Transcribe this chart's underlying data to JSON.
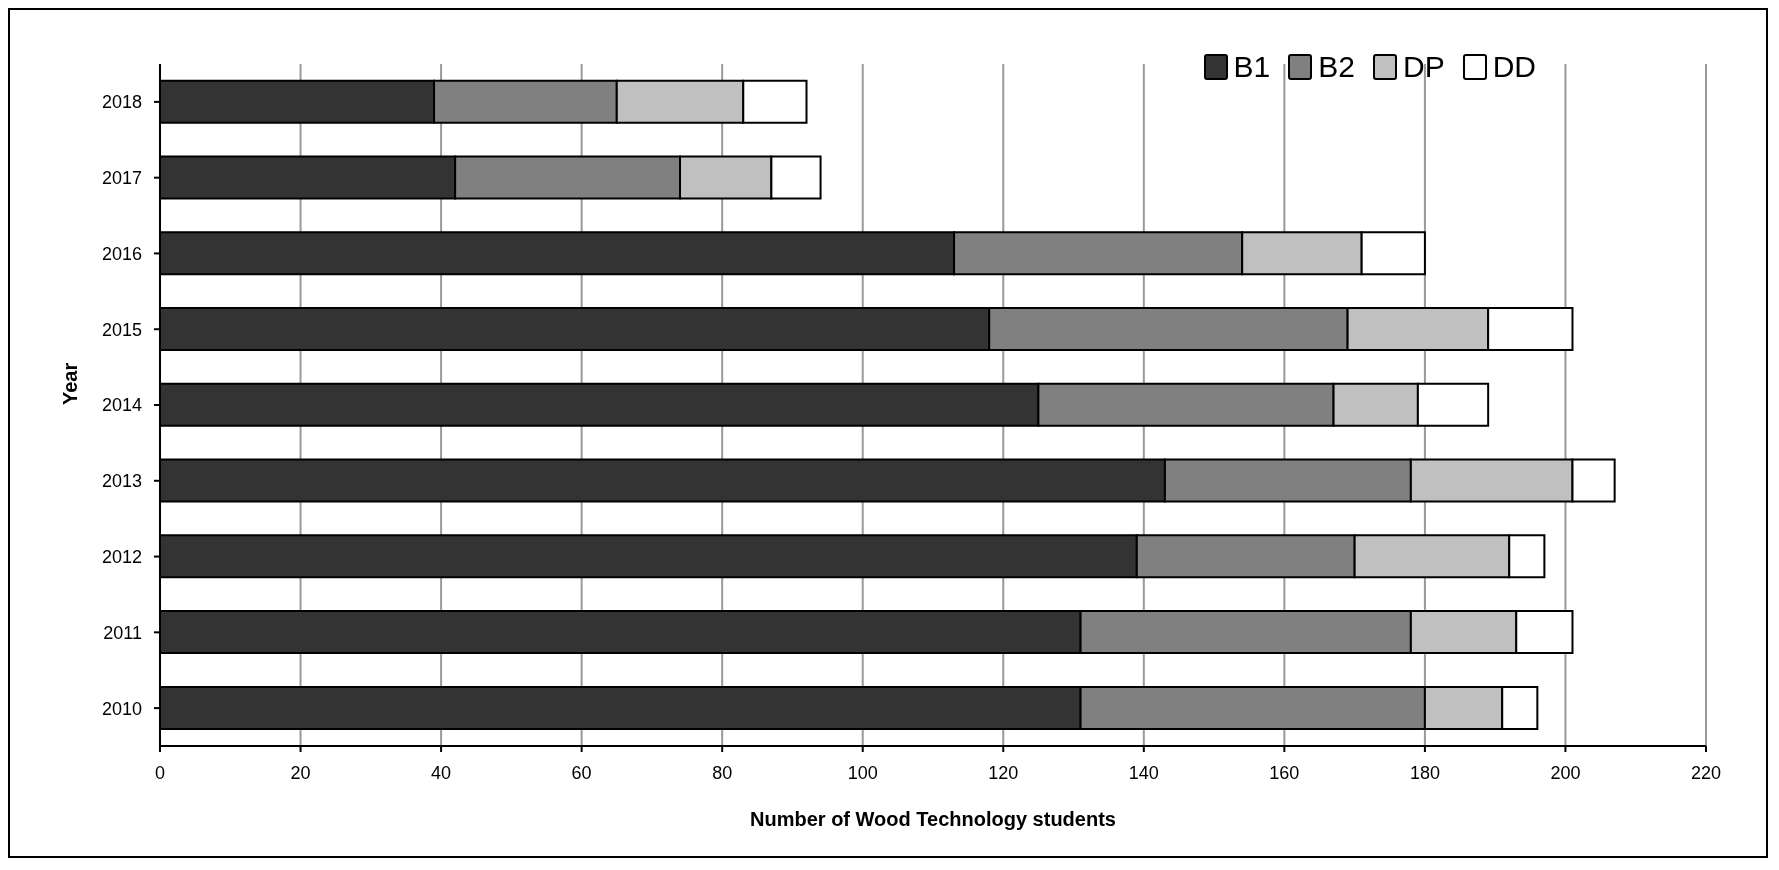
{
  "chart_data": {
    "type": "bar",
    "orientation": "horizontal",
    "stacked": true,
    "xlabel": "Number of Wood Technology students",
    "ylabel": "Year",
    "categories": [
      "2018",
      "2017",
      "2016",
      "2015",
      "2014",
      "2013",
      "2012",
      "2011",
      "2010"
    ],
    "series": [
      {
        "name": "B1",
        "color": "#333333",
        "values": [
          39,
          42,
          113,
          118,
          125,
          143,
          139,
          131,
          131
        ]
      },
      {
        "name": "B2",
        "color": "#808080",
        "values": [
          26,
          32,
          41,
          51,
          42,
          35,
          31,
          47,
          49
        ]
      },
      {
        "name": "DP",
        "color": "#c0c0c0",
        "values": [
          18,
          13,
          17,
          20,
          12,
          23,
          22,
          15,
          11
        ]
      },
      {
        "name": "DD",
        "color": "#ffffff",
        "values": [
          9,
          7,
          9,
          12,
          10,
          6,
          5,
          8,
          5
        ]
      }
    ],
    "xlim": [
      0,
      220
    ],
    "xticks": [
      0,
      20,
      40,
      60,
      80,
      100,
      120,
      140,
      160,
      180,
      200,
      220
    ],
    "grid": "x",
    "legend": "top right"
  }
}
